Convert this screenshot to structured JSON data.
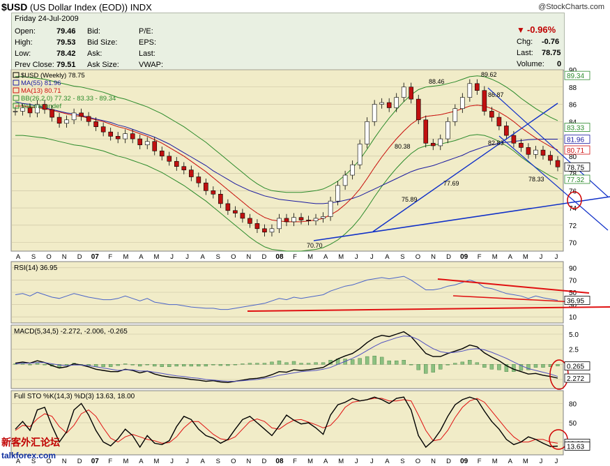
{
  "header": {
    "symbol": "$USD",
    "name": "(US Dollar Index (EOD))",
    "exchange": "INDX",
    "source": "@StockCharts.com"
  },
  "quote": {
    "date": "Friday   24-Jul-2009",
    "open_label": "Open:",
    "open": "79.46",
    "high_label": "High:",
    "high": "79.53",
    "low_label": "Low:",
    "low": "78.42",
    "prev_label": "Prev Close:",
    "prev": "79.51",
    "bid_label": "Bid:",
    "bidsize_label": "Bid Size:",
    "ask_label": "Ask:",
    "asksize_label": "Ask Size:",
    "pe_label": "P/E:",
    "eps_label": "EPS:",
    "last_label": "Last:",
    "vwap_label": "VWAP:",
    "pct_change": "-0.96%",
    "chg_label": "Chg:",
    "chg": "-0.76",
    "last2_label": "Last:",
    "last2": "78.75",
    "volume_label": "Volume:",
    "volume": "0"
  },
  "colors": {
    "ma55": "#1a1aa0",
    "ma13": "#d01010",
    "bb": "#2a8a2a",
    "up": "#ffffff",
    "down": "#c01010",
    "trend": "#1030c8",
    "rsi": "#4a64c8"
  },
  "watermark": {
    "cn": "新客外汇论坛",
    "url": "talkforex.com"
  },
  "chart_data": [
    {
      "type": "candlestick",
      "panel": "price",
      "legend": [
        "$USD (Weekly) 78.75",
        "MA(55) 81.96",
        "MA(13) 80.71",
        "BB(26,2.0) 77.32 - 83.33 - 89.34",
        "Volume undef"
      ],
      "ylim": [
        69,
        90
      ],
      "y_ticks": [
        70,
        72,
        74,
        76,
        78,
        80,
        82,
        84,
        86,
        88,
        90
      ],
      "x_ticks": [
        "A",
        "S",
        "O",
        "N",
        "D",
        "07",
        "F",
        "M",
        "A",
        "M",
        "J",
        "J",
        "A",
        "S",
        "O",
        "N",
        "D",
        "08",
        "F",
        "M",
        "A",
        "M",
        "J",
        "J",
        "A",
        "S",
        "O",
        "N",
        "D",
        "09",
        "F",
        "M",
        "A",
        "M",
        "J",
        "J"
      ],
      "annotations": [
        {
          "text": "88.46",
          "value": 88.46
        },
        {
          "text": "89.62",
          "value": 89.62
        },
        {
          "text": "86.87",
          "value": 86.87
        },
        {
          "text": "80.38",
          "value": 80.38
        },
        {
          "text": "82.83",
          "value": 82.83
        },
        {
          "text": "77.69",
          "value": 77.69
        },
        {
          "text": "75.89",
          "value": 75.89
        },
        {
          "text": "78.33",
          "value": 78.33
        },
        {
          "text": "70.70",
          "value": 70.7
        }
      ],
      "right_labels": [
        {
          "text": "89.34",
          "value": 89.34,
          "color": "#2a8a2a"
        },
        {
          "text": "83.33",
          "value": 83.33,
          "color": "#2a8a2a"
        },
        {
          "text": "81.96",
          "value": 81.96,
          "color": "#1a1aa0"
        },
        {
          "text": "80.71",
          "value": 80.71,
          "color": "#d01010"
        },
        {
          "text": "78.75",
          "value": 78.75,
          "color": "#000000"
        },
        {
          "text": "77.32",
          "value": 77.32,
          "color": "#2a8a2a"
        }
      ],
      "close_series": [
        85.2,
        85.6,
        85.0,
        86.0,
        85.4,
        84.5,
        83.8,
        84.2,
        85.0,
        84.6,
        84.0,
        83.4,
        82.8,
        82.3,
        82.0,
        82.6,
        82.0,
        81.3,
        81.7,
        80.6,
        80.0,
        79.4,
        78.8,
        78.4,
        77.6,
        76.9,
        76.0,
        75.6,
        74.5,
        73.7,
        73.4,
        72.8,
        72.2,
        71.6,
        71.2,
        71.6,
        72.8,
        72.4,
        72.9,
        72.6,
        72.5,
        72.8,
        73.0,
        74.8,
        76.6,
        77.8,
        79.0,
        81.4,
        84.0,
        86.0,
        86.2,
        85.6,
        86.8,
        88.0,
        86.6,
        84.2,
        81.5,
        81.2,
        82.0,
        84.0,
        85.5,
        86.8,
        88.4,
        87.6,
        85.2,
        84.5,
        83.5,
        82.4,
        81.5,
        81.0,
        80.2,
        80.7,
        80.1,
        79.5,
        78.75
      ],
      "ma55_series": [
        86.3,
        86.1,
        86.0,
        85.8,
        85.6,
        85.4,
        85.2,
        85.0,
        84.9,
        84.7,
        84.5,
        84.3,
        84.1,
        83.9,
        83.6,
        83.4,
        83.1,
        82.8,
        82.5,
        82.2,
        81.8,
        81.4,
        80.9,
        80.4,
        79.9,
        79.4,
        78.9,
        78.3,
        77.8,
        77.3,
        76.8,
        76.4,
        76.0,
        75.7,
        75.4,
        75.2,
        75.0,
        74.9,
        74.8,
        74.7,
        74.6,
        74.5,
        74.5,
        74.6,
        74.7,
        74.9,
        75.1,
        75.4,
        75.8,
        76.2,
        76.6,
        77.0,
        77.4,
        77.8,
        78.2,
        78.5,
        78.7,
        78.9,
        79.2,
        79.5,
        79.8,
        80.1,
        80.5,
        80.8,
        81.1,
        81.3,
        81.5,
        81.6,
        81.7,
        81.8,
        81.9,
        81.95,
        81.96,
        81.96,
        81.96
      ],
      "ma13_series": [
        85.8,
        85.8,
        85.7,
        85.6,
        85.5,
        85.3,
        85.1,
        84.9,
        84.7,
        84.6,
        84.4,
        84.2,
        84.0,
        83.7,
        83.4,
        83.2,
        82.9,
        82.6,
        82.3,
        81.9,
        81.5,
        81.0,
        80.5,
        80.0,
        79.4,
        78.8,
        78.2,
        77.5,
        76.8,
        76.1,
        75.4,
        74.7,
        74.0,
        73.4,
        72.9,
        72.6,
        72.5,
        72.4,
        72.4,
        72.4,
        72.5,
        72.6,
        72.8,
        73.2,
        73.7,
        74.4,
        75.2,
        76.2,
        77.4,
        78.7,
        79.9,
        81.0,
        82.0,
        82.9,
        83.7,
        84.3,
        84.6,
        84.7,
        84.8,
        85.0,
        85.2,
        85.5,
        85.8,
        85.9,
        85.8,
        85.5,
        85.1,
        84.6,
        84.0,
        83.3,
        82.7,
        82.1,
        81.6,
        81.1,
        80.71
      ]
    },
    {
      "type": "line",
      "panel": "rsi",
      "legend": "RSI(14) 36.95",
      "ylim": [
        0,
        100
      ],
      "y_ticks": [
        10,
        30,
        50,
        70,
        90
      ],
      "right_labels": [
        {
          "text": "36.95",
          "value": 36.95
        }
      ],
      "values": [
        46,
        48,
        44,
        50,
        46,
        42,
        40,
        44,
        48,
        45,
        42,
        40,
        38,
        38,
        40,
        44,
        40,
        36,
        40,
        34,
        32,
        30,
        30,
        28,
        26,
        25,
        24,
        24,
        22,
        22,
        24,
        26,
        28,
        30,
        32,
        36,
        40,
        38,
        42,
        40,
        42,
        44,
        46,
        52,
        56,
        60,
        62,
        66,
        70,
        72,
        74,
        72,
        74,
        76,
        70,
        62,
        54,
        54,
        56,
        60,
        62,
        66,
        70,
        66,
        58,
        56,
        52,
        48,
        46,
        44,
        40,
        44,
        41,
        39,
        36.95
      ]
    },
    {
      "type": "line",
      "panel": "macd",
      "legend": "MACD(5,34,5) -2.272, -2.006, -0.265",
      "ylim": [
        -4,
        6.5
      ],
      "y_ticks": [
        -2.5,
        0.0,
        2.5,
        5.0
      ],
      "y_tick_labels": [
        "",
        "",
        "2.5",
        "5.0"
      ],
      "right_labels": [
        {
          "text": "0.265",
          "value": -0.265
        },
        {
          "text": "2.272",
          "value": -2.272
        }
      ],
      "macd": [
        0.2,
        0.4,
        0.2,
        0.6,
        0.3,
        -0.2,
        -0.6,
        -0.4,
        0.1,
        -0.1,
        -0.4,
        -0.8,
        -1.0,
        -1.2,
        -1.2,
        -0.8,
        -1.0,
        -1.4,
        -1.1,
        -1.6,
        -1.9,
        -2.1,
        -2.2,
        -2.3,
        -2.5,
        -2.6,
        -2.8,
        -2.7,
        -2.9,
        -3.0,
        -2.8,
        -2.6,
        -2.4,
        -2.3,
        -2.1,
        -1.7,
        -1.2,
        -1.3,
        -0.9,
        -1.0,
        -0.9,
        -0.7,
        -0.5,
        0.2,
        0.9,
        1.4,
        1.8,
        2.6,
        3.6,
        4.4,
        4.8,
        4.6,
        5.0,
        5.4,
        4.6,
        3.2,
        1.8,
        1.3,
        1.3,
        1.8,
        2.2,
        2.6,
        3.2,
        2.9,
        1.9,
        1.2,
        0.6,
        -0.2,
        -0.8,
        -1.2,
        -1.6,
        -1.5,
        -1.8,
        -2.0,
        -2.272
      ],
      "signal": [
        0.1,
        0.2,
        0.2,
        0.3,
        0.3,
        0.1,
        -0.1,
        -0.2,
        -0.1,
        -0.1,
        -0.2,
        -0.4,
        -0.6,
        -0.8,
        -1.0,
        -0.9,
        -0.9,
        -1.1,
        -1.1,
        -1.3,
        -1.5,
        -1.7,
        -1.9,
        -2.0,
        -2.2,
        -2.3,
        -2.5,
        -2.6,
        -2.7,
        -2.8,
        -2.8,
        -2.7,
        -2.6,
        -2.5,
        -2.3,
        -2.1,
        -1.8,
        -1.6,
        -1.4,
        -1.2,
        -1.1,
        -1.0,
        -0.8,
        -0.5,
        0.0,
        0.5,
        1.0,
        1.6,
        2.3,
        3.0,
        3.6,
        4.0,
        4.4,
        4.7,
        4.6,
        4.1,
        3.3,
        2.6,
        2.1,
        1.9,
        2.0,
        2.2,
        2.5,
        2.6,
        2.4,
        2.0,
        1.5,
        1.0,
        0.4,
        -0.2,
        -0.7,
        -1.0,
        -1.3,
        -1.6,
        -2.006
      ]
    },
    {
      "type": "line",
      "panel": "stochastic",
      "legend": "Full STO %K(14,3) %D(3) 13.63, 18.00",
      "ylim": [
        0,
        100
      ],
      "y_ticks": [
        20,
        50,
        80
      ],
      "right_labels": [
        {
          "text": "18.00",
          "value": 18.0
        },
        {
          "text": "13.63",
          "value": 13.63
        }
      ],
      "k": [
        40,
        52,
        38,
        70,
        74,
        45,
        20,
        36,
        70,
        80,
        62,
        38,
        20,
        14,
        25,
        40,
        30,
        12,
        30,
        18,
        16,
        22,
        44,
        60,
        55,
        40,
        30,
        26,
        18,
        24,
        40,
        55,
        60,
        50,
        40,
        30,
        45,
        62,
        54,
        48,
        50,
        42,
        32,
        62,
        78,
        82,
        88,
        84,
        86,
        90,
        86,
        80,
        88,
        90,
        70,
        30,
        12,
        22,
        38,
        60,
        78,
        86,
        90,
        86,
        68,
        52,
        40,
        24,
        16,
        20,
        28,
        24,
        18,
        13,
        13.63
      ],
      "d": [
        38,
        46,
        44,
        56,
        64,
        60,
        44,
        34,
        46,
        64,
        70,
        60,
        42,
        26,
        20,
        28,
        32,
        28,
        24,
        22,
        18,
        19,
        28,
        42,
        52,
        52,
        42,
        32,
        25,
        23,
        28,
        40,
        52,
        56,
        52,
        42,
        40,
        48,
        54,
        55,
        51,
        47,
        42,
        46,
        58,
        74,
        82,
        84,
        86,
        88,
        88,
        84,
        84,
        86,
        84,
        62,
        38,
        22,
        24,
        38,
        58,
        74,
        84,
        88,
        82,
        68,
        54,
        40,
        28,
        20,
        20,
        24,
        24,
        20,
        18.0
      ]
    }
  ]
}
